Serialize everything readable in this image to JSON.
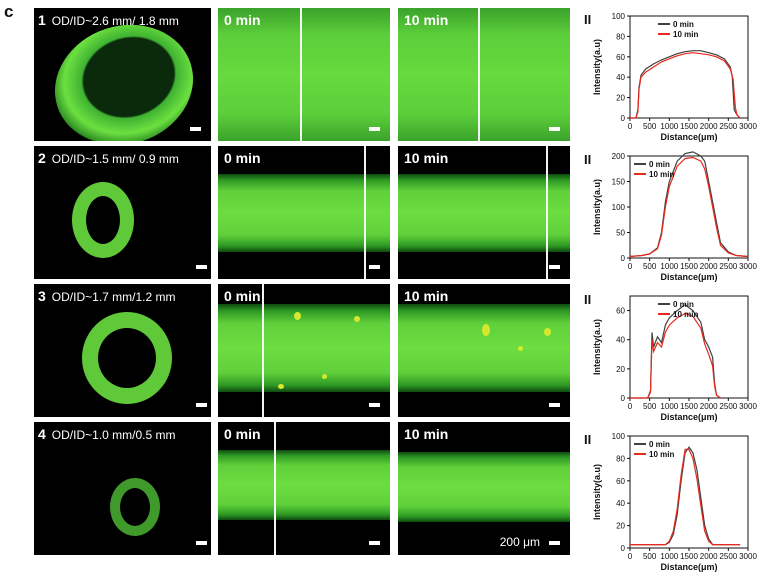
{
  "panel_letter": "c",
  "time_labels": {
    "t0": "0 min",
    "t10": "10 min"
  },
  "scale_label": "200 μm",
  "rows": [
    {
      "index_label": "1",
      "od_id": "OD/ID~2.6 mm/ 1.8 mm"
    },
    {
      "index_label": "2",
      "od_id": "OD/ID~1.5 mm/ 0.9 mm"
    },
    {
      "index_label": "3",
      "od_id": "OD/ID~1.7 mm/1.2 mm"
    },
    {
      "index_label": "4",
      "od_id": "OD/ID~1.0 mm/0.5 mm"
    }
  ],
  "colors": {
    "series_0min": "#404040",
    "series_10min": "#e8291c",
    "fluorescence": "#5fd03a"
  },
  "chart_data": [
    {
      "type": "line",
      "panel_label": "II",
      "xlabel": "Distance(μm)",
      "ylabel": "Intensity(a.u)",
      "xlim": [
        0,
        3000
      ],
      "ylim": [
        0,
        100
      ],
      "xticks": [
        "0",
        "500",
        "1000",
        "1500",
        "2000",
        "2500",
        "3000"
      ],
      "yticks": [
        "0",
        "20",
        "40",
        "60",
        "80",
        "100"
      ],
      "legend_position": "top-center",
      "series": [
        {
          "name": "0 min",
          "x": [
            0,
            150,
            200,
            230,
            280,
            400,
            600,
            800,
            1000,
            1200,
            1400,
            1600,
            1800,
            2000,
            2200,
            2400,
            2550,
            2600,
            2650,
            2720,
            2800
          ],
          "values": [
            0,
            0,
            8,
            30,
            42,
            48,
            53,
            57,
            60,
            63,
            65,
            66,
            66,
            64,
            62,
            58,
            50,
            40,
            8,
            3,
            0
          ]
        },
        {
          "name": "10 min",
          "x": [
            0,
            150,
            200,
            230,
            280,
            400,
            600,
            800,
            1000,
            1200,
            1400,
            1600,
            1800,
            2000,
            2200,
            2400,
            2550,
            2620,
            2680,
            2720,
            2800
          ],
          "values": [
            0,
            0,
            6,
            28,
            40,
            45,
            50,
            55,
            58,
            61,
            63,
            64,
            63,
            62,
            60,
            56,
            48,
            38,
            10,
            3,
            0
          ]
        }
      ]
    },
    {
      "type": "line",
      "panel_label": "II",
      "xlabel": "Distance(μm)",
      "ylabel": "Intensity(a.u)",
      "xlim": [
        0,
        3000
      ],
      "ylim": [
        0,
        200
      ],
      "xticks": [
        "0",
        "500",
        "1000",
        "1500",
        "2000",
        "2500",
        "3000"
      ],
      "yticks": [
        "0",
        "50",
        "100",
        "150",
        "200"
      ],
      "legend_position": "top-left",
      "series": [
        {
          "name": "0 min",
          "x": [
            0,
            300,
            500,
            700,
            800,
            900,
            1000,
            1100,
            1200,
            1400,
            1600,
            1800,
            1900,
            2000,
            2100,
            2200,
            2300,
            2500,
            2700,
            3000
          ],
          "values": [
            3,
            5,
            8,
            20,
            50,
            110,
            150,
            170,
            190,
            205,
            208,
            200,
            190,
            150,
            110,
            70,
            30,
            12,
            5,
            3
          ]
        },
        {
          "name": "10 min",
          "x": [
            0,
            300,
            500,
            700,
            800,
            900,
            1000,
            1100,
            1200,
            1400,
            1600,
            1800,
            1900,
            2000,
            2100,
            2200,
            2300,
            2500,
            2700,
            3000
          ],
          "values": [
            3,
            5,
            8,
            18,
            45,
            100,
            140,
            160,
            180,
            195,
            197,
            190,
            175,
            140,
            100,
            60,
            25,
            10,
            5,
            3
          ]
        }
      ]
    },
    {
      "type": "line",
      "panel_label": "II",
      "xlabel": "Distance(μm)",
      "ylabel": "Intensity(a.u)",
      "xlim": [
        0,
        3000
      ],
      "ylim": [
        0,
        70
      ],
      "xticks": [
        "0",
        "500",
        "1000",
        "1500",
        "2000",
        "2500",
        "3000"
      ],
      "yticks": [
        "0",
        "20",
        "40",
        "60"
      ],
      "legend_position": "top-center",
      "series": [
        {
          "name": "0 min",
          "x": [
            0,
            450,
            520,
            560,
            600,
            700,
            800,
            900,
            1000,
            1200,
            1400,
            1600,
            1800,
            1900,
            2000,
            2100,
            2150,
            2200,
            2300
          ],
          "values": [
            0,
            0,
            5,
            45,
            35,
            42,
            38,
            50,
            55,
            60,
            64,
            60,
            52,
            40,
            35,
            28,
            10,
            2,
            0
          ]
        },
        {
          "name": "10 min",
          "x": [
            0,
            450,
            520,
            560,
            600,
            700,
            800,
            900,
            1000,
            1200,
            1400,
            1600,
            1800,
            1900,
            2000,
            2100,
            2150,
            2200,
            2300
          ],
          "values": [
            0,
            0,
            4,
            40,
            32,
            38,
            35,
            45,
            50,
            55,
            58,
            56,
            48,
            37,
            30,
            22,
            8,
            2,
            0
          ]
        }
      ]
    },
    {
      "type": "line",
      "panel_label": "II",
      "xlabel": "Distance(μm)",
      "ylabel": "Intensity(a.u)",
      "xlim": [
        0,
        3000
      ],
      "ylim": [
        0,
        100
      ],
      "xticks": [
        "0",
        "500",
        "1000",
        "1500",
        "2000",
        "2500",
        "3000"
      ],
      "yticks": [
        "0",
        "20",
        "40",
        "60",
        "80",
        "100"
      ],
      "legend_position": "top-left",
      "series": [
        {
          "name": "0 min",
          "x": [
            0,
            900,
            1000,
            1100,
            1200,
            1300,
            1400,
            1500,
            1600,
            1700,
            1800,
            1900,
            2000,
            2100,
            2800
          ],
          "values": [
            3,
            3,
            5,
            12,
            30,
            60,
            85,
            90,
            85,
            70,
            45,
            20,
            8,
            3,
            3
          ]
        },
        {
          "name": "10 min",
          "x": [
            0,
            900,
            1000,
            1100,
            1200,
            1300,
            1400,
            1500,
            1600,
            1700,
            1800,
            1900,
            2000,
            2100,
            2800
          ],
          "values": [
            3,
            3,
            6,
            15,
            35,
            65,
            88,
            88,
            80,
            62,
            38,
            15,
            6,
            3,
            3
          ]
        }
      ]
    }
  ]
}
